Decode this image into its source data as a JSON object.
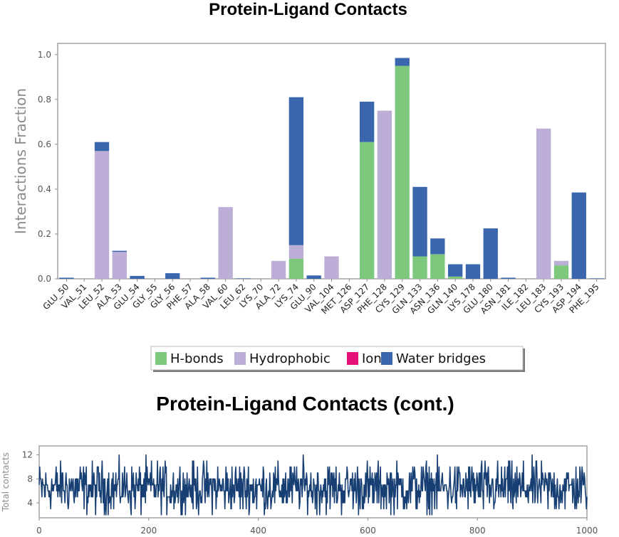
{
  "title": "Protein-Ligand Contacts",
  "title2": "Protein-Ligand Contacts (cont.)",
  "colors": {
    "hbonds": "#7dc87d",
    "hydrophobic": "#bcaed6",
    "ionic": "#e4127a",
    "water": "#3a66ad",
    "line": "#173f73",
    "frame": "#8c8c8c"
  },
  "chart_data": [
    {
      "type": "bar",
      "stacked": true,
      "ylabel": "Interactions Fraction",
      "ylim": [
        0,
        1.05
      ],
      "yticks": [
        "0.0",
        "0.2",
        "0.4",
        "0.6",
        "0.8",
        "1.0"
      ],
      "categories": [
        "GLU_50",
        "VAL_51",
        "LEU_52",
        "ALA_53",
        "GLU_54",
        "GLY_55",
        "GLY_56",
        "PHE_57",
        "ALA_58",
        "VAL_60",
        "LEU_62",
        "LYS_70",
        "ALA_72",
        "LYS_74",
        "GLU_90",
        "VAL_104",
        "MET_126",
        "ASP_127",
        "PHE_128",
        "CYS_129",
        "GLN_133",
        "ASN_136",
        "GLN_140",
        "LYS_178",
        "GLU_180",
        "ASN_181",
        "ILE_182",
        "LEU_183",
        "CYS_193",
        "ASP_194",
        "PHE_195"
      ],
      "series": [
        {
          "name": "H-bonds",
          "color_key": "hbonds",
          "values": [
            0,
            0,
            0,
            0,
            0,
            0,
            0,
            0,
            0,
            0,
            0,
            0,
            0,
            0.09,
            0,
            0,
            0,
            0.61,
            0,
            0.95,
            0.1,
            0.11,
            0.01,
            0,
            0,
            0,
            0,
            0,
            0.06,
            0,
            0
          ]
        },
        {
          "name": "Hydrophobic",
          "color_key": "hydrophobic",
          "values": [
            0,
            0,
            0.57,
            0.12,
            0,
            0,
            0,
            0,
            0,
            0.32,
            0,
            0,
            0.08,
            0.06,
            0,
            0.1,
            0,
            0,
            0.75,
            0,
            0,
            0,
            0,
            0,
            0,
            0,
            0,
            0.67,
            0.02,
            0,
            0
          ]
        },
        {
          "name": "Ionic",
          "color_key": "ionic",
          "values": [
            0,
            0,
            0,
            0,
            0,
            0,
            0,
            0,
            0,
            0,
            0,
            0,
            0,
            0,
            0,
            0,
            0,
            0,
            0,
            0,
            0,
            0,
            0,
            0,
            0,
            0,
            0,
            0,
            0,
            0,
            0
          ]
        },
        {
          "name": "Water bridges",
          "color_key": "water",
          "values": [
            0.005,
            0,
            0.04,
            0.005,
            0.013,
            0,
            0.025,
            0,
            0.005,
            0,
            0.002,
            0,
            0,
            0.66,
            0.015,
            0,
            0,
            0.18,
            0,
            0.035,
            0.31,
            0.07,
            0.055,
            0.065,
            0.225,
            0.005,
            0,
            0,
            0,
            0.385,
            0.002
          ]
        }
      ]
    },
    {
      "type": "line",
      "ylabel": "Total contacts",
      "xlim": [
        0,
        1000
      ],
      "ylim": [
        1.5,
        13.5
      ],
      "xticks": [
        "0",
        "200",
        "400",
        "600",
        "800",
        "1000"
      ],
      "yticks": [
        "4",
        "8",
        "12"
      ],
      "series": [
        {
          "name": "",
          "mean": 6.5,
          "min": 2,
          "max": 13,
          "n_points": 1001
        }
      ]
    }
  ]
}
